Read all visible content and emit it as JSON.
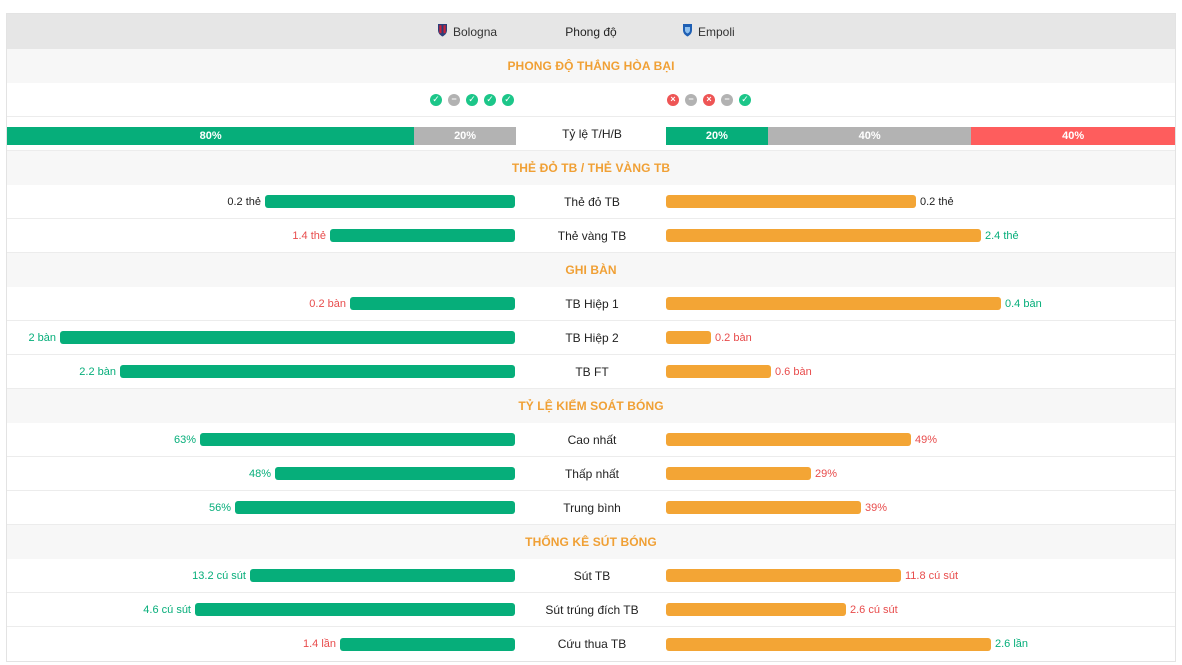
{
  "header": {
    "home_team": "Bologna",
    "center_title": "Phong độ",
    "away_team": "Empoli"
  },
  "colors": {
    "home_bar": "#06ae7a",
    "away_bar": "#f3a535",
    "section_title": "#f0a035",
    "win": "#06ae7a",
    "draw": "#b3b3b3",
    "loss": "#fe5d5d"
  },
  "sections": {
    "form": "PHONG ĐỘ THẮNG HÒA BẠI",
    "cards": "THẺ ĐỎ TB / THẺ VÀNG TB",
    "goals": "GHI BÀN",
    "possession": "TỶ LỆ KIỂM SOÁT BÓNG",
    "shots": "THỐNG KÊ SÚT BÓNG"
  },
  "form": {
    "home": [
      "W",
      "D",
      "W",
      "W",
      "W"
    ],
    "away": [
      "L",
      "D",
      "L",
      "D",
      "W"
    ],
    "icon_names": {
      "W": "check-icon",
      "D": "minus-icon",
      "L": "x-icon"
    }
  },
  "ratio": {
    "label": "Tỷ lệ T/H/B",
    "home": {
      "win": 80,
      "draw": 20,
      "loss": 0,
      "win_label": "80%",
      "draw_label": "20%"
    },
    "away": {
      "win": 20,
      "draw": 40,
      "loss": 40,
      "win_label": "20%",
      "draw_label": "40%",
      "loss_label": "40%"
    }
  },
  "cards": [
    {
      "label": "Thẻ đỏ TB",
      "home_text": "0.2 thẻ",
      "away_text": "0.2 thẻ",
      "home_value": 0.2,
      "away_value": 0.2,
      "home_fill": 0.5,
      "away_fill": 0.5,
      "home_color": "dark",
      "away_color": "dark"
    },
    {
      "label": "Thẻ vàng TB",
      "home_text": "1.4 thẻ",
      "away_text": "2.4 thẻ",
      "home_value": 1.4,
      "away_value": 2.4,
      "home_fill": 0.37,
      "away_fill": 0.63,
      "home_color": "red",
      "away_color": "green"
    }
  ],
  "goals": [
    {
      "label": "TB Hiệp 1",
      "home_text": "0.2 bàn",
      "away_text": "0.4 bàn",
      "home_value": 0.2,
      "away_value": 0.4,
      "home_fill": 0.33,
      "away_fill": 0.67,
      "home_color": "red",
      "away_color": "green"
    },
    {
      "label": "TB Hiệp 2",
      "home_text": "2 bàn",
      "away_text": "0.2 bàn",
      "home_value": 2,
      "away_value": 0.2,
      "home_fill": 0.91,
      "away_fill": 0.09,
      "home_color": "green",
      "away_color": "red"
    },
    {
      "label": "TB FT",
      "home_text": "2.2 bàn",
      "away_text": "0.6 bàn",
      "home_value": 2.2,
      "away_value": 0.6,
      "home_fill": 0.79,
      "away_fill": 0.21,
      "home_color": "green",
      "away_color": "red"
    }
  ],
  "possession": [
    {
      "label": "Cao nhất",
      "home_text": "63%",
      "away_text": "49%",
      "home_value": 63,
      "away_value": 49,
      "home_fill": 0.63,
      "away_fill": 0.49,
      "home_color": "green",
      "away_color": "red"
    },
    {
      "label": "Thấp nhất",
      "home_text": "48%",
      "away_text": "29%",
      "home_value": 48,
      "away_value": 29,
      "home_fill": 0.48,
      "away_fill": 0.29,
      "home_color": "green",
      "away_color": "red"
    },
    {
      "label": "Trung bình",
      "home_text": "56%",
      "away_text": "39%",
      "home_value": 56,
      "away_value": 39,
      "home_fill": 0.56,
      "away_fill": 0.39,
      "home_color": "green",
      "away_color": "red"
    }
  ],
  "shots": [
    {
      "label": "Sút TB",
      "home_text": "13.2 cú sút",
      "away_text": "11.8 cú sút",
      "home_value": 13.2,
      "away_value": 11.8,
      "home_fill": 0.53,
      "away_fill": 0.47,
      "home_color": "green",
      "away_color": "red"
    },
    {
      "label": "Sút trúng đích TB",
      "home_text": "4.6 cú sút",
      "away_text": "2.6 cú sút",
      "home_value": 4.6,
      "away_value": 2.6,
      "home_fill": 0.64,
      "away_fill": 0.36,
      "home_color": "green",
      "away_color": "red"
    },
    {
      "label": "Cứu thua TB",
      "home_text": "1.4 lần",
      "away_text": "2.6 lần",
      "home_value": 1.4,
      "away_value": 2.6,
      "home_fill": 0.35,
      "away_fill": 0.65,
      "home_color": "red",
      "away_color": "green"
    }
  ]
}
